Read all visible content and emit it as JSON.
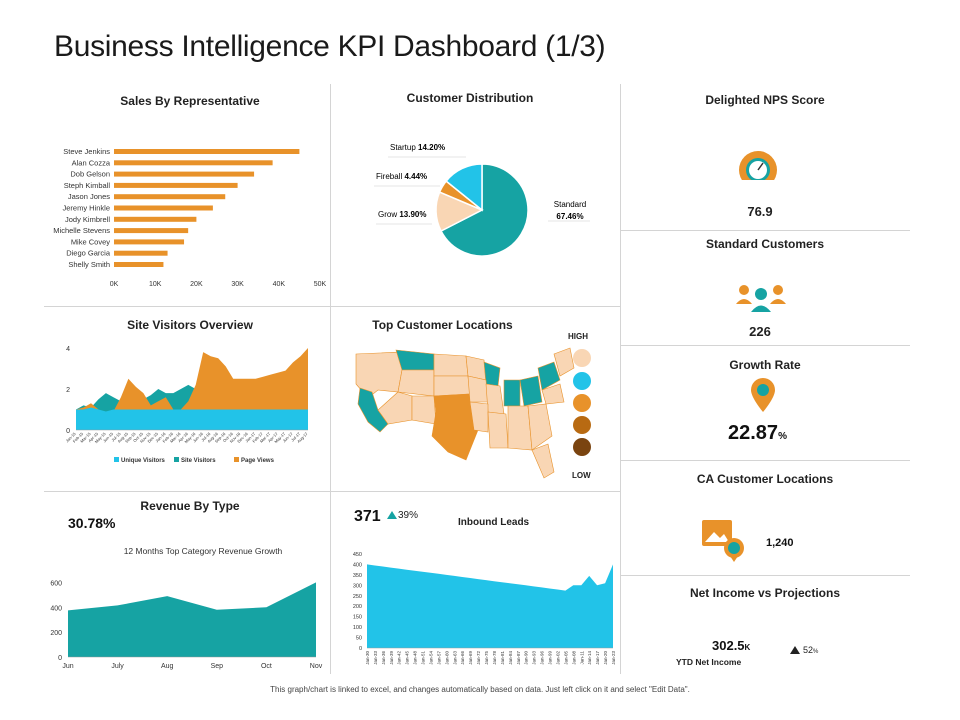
{
  "title": "Business Intelligence KPI Dashboard (1/3)",
  "footer": "This graph/chart is linked to excel, and changes automatically based on data. Just left click on it and select \"Edit Data\".",
  "colors": {
    "orange": "#E8922A",
    "teal": "#16A3A3",
    "cyan": "#22C3E8",
    "peach": "#F9D6B4"
  },
  "panels": {
    "sales_rep": "Sales By Representative",
    "customer_dist": "Customer Distribution",
    "site_visitors": "Site Visitors Overview",
    "top_locations": "Top Customer Locations",
    "revenue_type": "Revenue By Type",
    "inbound": "Inbound Leads"
  },
  "map_legend": {
    "high": "HIGH",
    "low": "LOW"
  },
  "revenue": {
    "percent": "30.78%",
    "subtitle": "12 Months Top Category Revenue Growth"
  },
  "inbound": {
    "value": "371",
    "change": "39%"
  },
  "kpis": {
    "nps": {
      "title": "Delighted NPS Score",
      "value": "76.9"
    },
    "standard": {
      "title": "Standard Customers",
      "value": "226"
    },
    "growth": {
      "title": "Growth Rate",
      "value": "22.87",
      "unit": "%"
    },
    "ca": {
      "title": "CA Customer Locations",
      "value": "1,240"
    },
    "net": {
      "title": "Net Income vs Projections",
      "value": "302.5",
      "unit": "K",
      "label": "YTD Net Income",
      "change": "52",
      "change_unit": "%"
    }
  },
  "chart_data": [
    {
      "id": "sales",
      "type": "bar",
      "orientation": "horizontal",
      "title": "Sales By Representative",
      "categories": [
        "Steve Jenkins",
        "Alan Cozza",
        "Dob Gelson",
        "Steph Kimball",
        "Jason Jones",
        "Jeremy Hinkle",
        "Jody Kimbrell",
        "Michelle Stevens",
        "Mike Covey",
        "Diego Garcia",
        "Shelly Smith"
      ],
      "values": [
        45000,
        38500,
        34000,
        30000,
        27000,
        24000,
        20000,
        18000,
        17000,
        13000,
        12000
      ],
      "xticks": [
        "0K",
        "10K",
        "20K",
        "30K",
        "40K",
        "50K"
      ],
      "xlim": [
        0,
        50000
      ]
    },
    {
      "id": "distribution",
      "type": "pie",
      "title": "Customer Distribution",
      "slices": [
        {
          "name": "Standard",
          "label": "67.46%",
          "value": 67.46
        },
        {
          "name": "Grow",
          "label": "13.90%",
          "value": 13.9
        },
        {
          "name": "Fireball",
          "label": "4.44%",
          "value": 4.44
        },
        {
          "name": "Startup",
          "label": "14.20%",
          "value": 14.2
        }
      ]
    },
    {
      "id": "visitors",
      "type": "area",
      "title": "Site Visitors Overview",
      "ylim": [
        0,
        4
      ],
      "yticks": [
        "0",
        "2",
        "4"
      ],
      "x": [
        "Jan-15",
        "Feb-15",
        "Mar-15",
        "Apr-15",
        "May-15",
        "Jun-15",
        "Jul-15",
        "Aug-15",
        "Sep-15",
        "Oct-15",
        "Nov-15",
        "Dec-15",
        "Jan-16",
        "Feb-16",
        "Mar-16",
        "Apr-16",
        "May-16",
        "Jun-16",
        "Jul-16",
        "Aug-16",
        "Sep-16",
        "Oct-16",
        "Nov-16",
        "Dec-16",
        "Jan-17",
        "Feb-17",
        "Mar-17",
        "Apr-17",
        "May-17",
        "Jun-17",
        "Jul-17",
        "Aug-17"
      ],
      "series": [
        {
          "name": "Unique Visitors",
          "values": [
            1.0,
            1.0,
            1.1,
            1.0,
            0.9,
            1.0,
            1.0,
            1.0,
            1.0,
            1.0,
            1.0,
            1.0,
            1.0,
            1.0,
            1.0,
            1.0,
            1.0,
            1.0,
            1.0,
            1.0,
            1.0,
            1.0,
            1.0,
            1.0,
            1.0,
            1.0,
            1.0,
            1.0,
            1.0,
            1.0,
            1.0,
            1.0
          ]
        },
        {
          "name": "Site Visitors",
          "values": [
            1.0,
            1.2,
            1.1,
            1.5,
            1.8,
            1.6,
            1.4,
            1.2,
            1.4,
            1.5,
            1.7,
            2.0,
            1.8,
            1.8,
            2.0,
            2.2,
            2.0,
            1.9,
            1.8,
            1.8,
            1.9,
            2.1,
            2.0,
            2.0,
            2.1,
            2.2,
            2.1,
            2.2,
            2.3,
            2.4,
            2.6,
            2.8
          ]
        },
        {
          "name": "Page Views",
          "values": [
            1.0,
            1.1,
            1.3,
            1.0,
            0.1,
            0.9,
            1.6,
            2.5,
            2.1,
            1.8,
            1.2,
            1.4,
            1.6,
            1.0,
            1.0,
            1.4,
            2.2,
            3.8,
            3.6,
            3.5,
            3.1,
            2.5,
            2.5,
            2.5,
            2.5,
            2.6,
            2.7,
            2.8,
            2.9,
            3.3,
            3.6,
            4.0
          ]
        }
      ]
    },
    {
      "id": "revenue",
      "type": "area",
      "title": "12 Months Top Category Revenue Growth",
      "ylim": [
        0,
        700
      ],
      "yticks": [
        "0",
        "200",
        "400",
        "600"
      ],
      "categories": [
        "Jun",
        "July",
        "Aug",
        "Sep",
        "Oct",
        "Nov"
      ],
      "values": [
        375,
        415,
        490,
        380,
        400,
        600
      ]
    },
    {
      "id": "leads",
      "type": "area",
      "title": "Inbound Leads",
      "ylim": [
        0,
        450
      ],
      "yticks": [
        "0",
        "50",
        "100",
        "150",
        "200",
        "250",
        "300",
        "350",
        "400",
        "450"
      ],
      "x": [
        "Jan-30",
        "Jan-33",
        "Jan-36",
        "Jan-39",
        "Jan-42",
        "Jan-45",
        "Jan-48",
        "Jan-51",
        "Jan-54",
        "Jan-57",
        "Jan-60",
        "Jan-63",
        "Jan-66",
        "Jan-69",
        "Jan-72",
        "Jan-75",
        "Jan-78",
        "Jan-81",
        "Jan-84",
        "Jan-87",
        "Jan-90",
        "Jan-93",
        "Jan-96",
        "Jan-99",
        "Jan-02",
        "Jan-05",
        "Jan-08",
        "Jan-11",
        "Jan-14",
        "Jan-17",
        "Jan-20",
        "Jan-23"
      ],
      "values": [
        400,
        395,
        390,
        385,
        380,
        375,
        370,
        365,
        360,
        355,
        350,
        345,
        340,
        335,
        330,
        325,
        320,
        315,
        310,
        305,
        300,
        295,
        290,
        285,
        280,
        275,
        300,
        300,
        345,
        300,
        310,
        400
      ]
    }
  ]
}
